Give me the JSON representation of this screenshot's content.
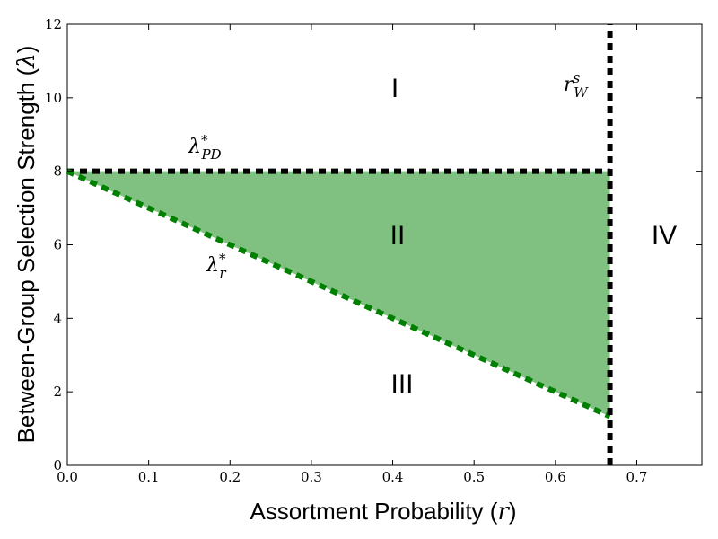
{
  "chart_data": {
    "type": "area",
    "xlabel": "Assortment Probability",
    "xlabel_var": "r",
    "ylabel": "Between-Group Selection Strength",
    "ylabel_var": "λ",
    "xlim": [
      0,
      0.78
    ],
    "ylim": [
      0,
      12
    ],
    "xticks": [
      "0.0",
      "0.1",
      "0.2",
      "0.3",
      "0.4",
      "0.5",
      "0.6",
      "0.7"
    ],
    "yticks": [
      "0",
      "2",
      "4",
      "6",
      "8",
      "10",
      "12"
    ],
    "shaded_region": {
      "color": "#80c080",
      "vertices": [
        {
          "x": 0,
          "y": 8
        },
        {
          "x": 0.667,
          "y": 8
        },
        {
          "x": 0.667,
          "y": 1.33
        }
      ]
    },
    "lines": [
      {
        "name": "lambda_PD_star",
        "color": "#000000",
        "style": "dashed",
        "points": [
          {
            "x": 0,
            "y": 8
          },
          {
            "x": 0.667,
            "y": 8
          }
        ]
      },
      {
        "name": "lambda_r_star",
        "color": "#008000",
        "style": "dashed",
        "points": [
          {
            "x": 0,
            "y": 8
          },
          {
            "x": 0.667,
            "y": 1.33
          }
        ]
      },
      {
        "name": "r_W_s",
        "color": "#000000",
        "style": "dashed",
        "points": [
          {
            "x": 0.667,
            "y": 0
          },
          {
            "x": 0.667,
            "y": 12
          }
        ]
      }
    ],
    "annotations": {
      "lambda_pd": {
        "base": "λ",
        "sup": "*",
        "sub": "PD"
      },
      "lambda_r": {
        "base": "λ",
        "sup": "*",
        "sub": "r"
      },
      "r_ws": {
        "base": "r",
        "sup": "s",
        "sub": "W"
      }
    },
    "regions": [
      {
        "label": "I"
      },
      {
        "label": "II"
      },
      {
        "label": "III"
      },
      {
        "label": "IV"
      }
    ]
  }
}
